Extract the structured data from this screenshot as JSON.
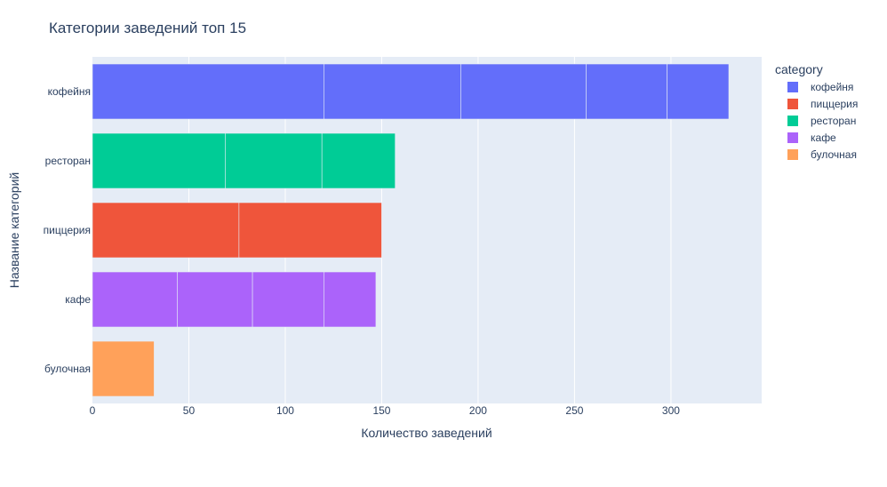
{
  "chart_data": {
    "type": "bar",
    "orientation": "horizontal",
    "barmode": "stack",
    "title": "Категории заведений топ 15",
    "xlabel": "Количество заведений",
    "ylabel": "Название категорий",
    "xlim": [
      0,
      347
    ],
    "xticks": [
      0,
      50,
      100,
      150,
      200,
      250,
      300
    ],
    "grid": true,
    "legend_title": "category",
    "legend_position": "right",
    "categories": [
      "кофейня",
      "ресторан",
      "пиццерия",
      "кафе",
      "булочная"
    ],
    "series": [
      {
        "name": "кофейня",
        "color": "#636efa",
        "category": "кофейня",
        "segments": [
          120,
          71,
          65,
          42,
          32
        ]
      },
      {
        "name": "пиццерия",
        "color": "#ef553b",
        "category": "пиццерия",
        "segments": [
          76,
          74
        ]
      },
      {
        "name": "ресторан",
        "color": "#00cc96",
        "category": "ресторан",
        "segments": [
          69,
          50,
          38
        ]
      },
      {
        "name": "кафе",
        "color": "#ab63fa",
        "category": "кафе",
        "segments": [
          44,
          39,
          37,
          27
        ]
      },
      {
        "name": "булочная",
        "color": "#ffa15a",
        "category": "булочная",
        "segments": [
          32
        ]
      }
    ]
  }
}
